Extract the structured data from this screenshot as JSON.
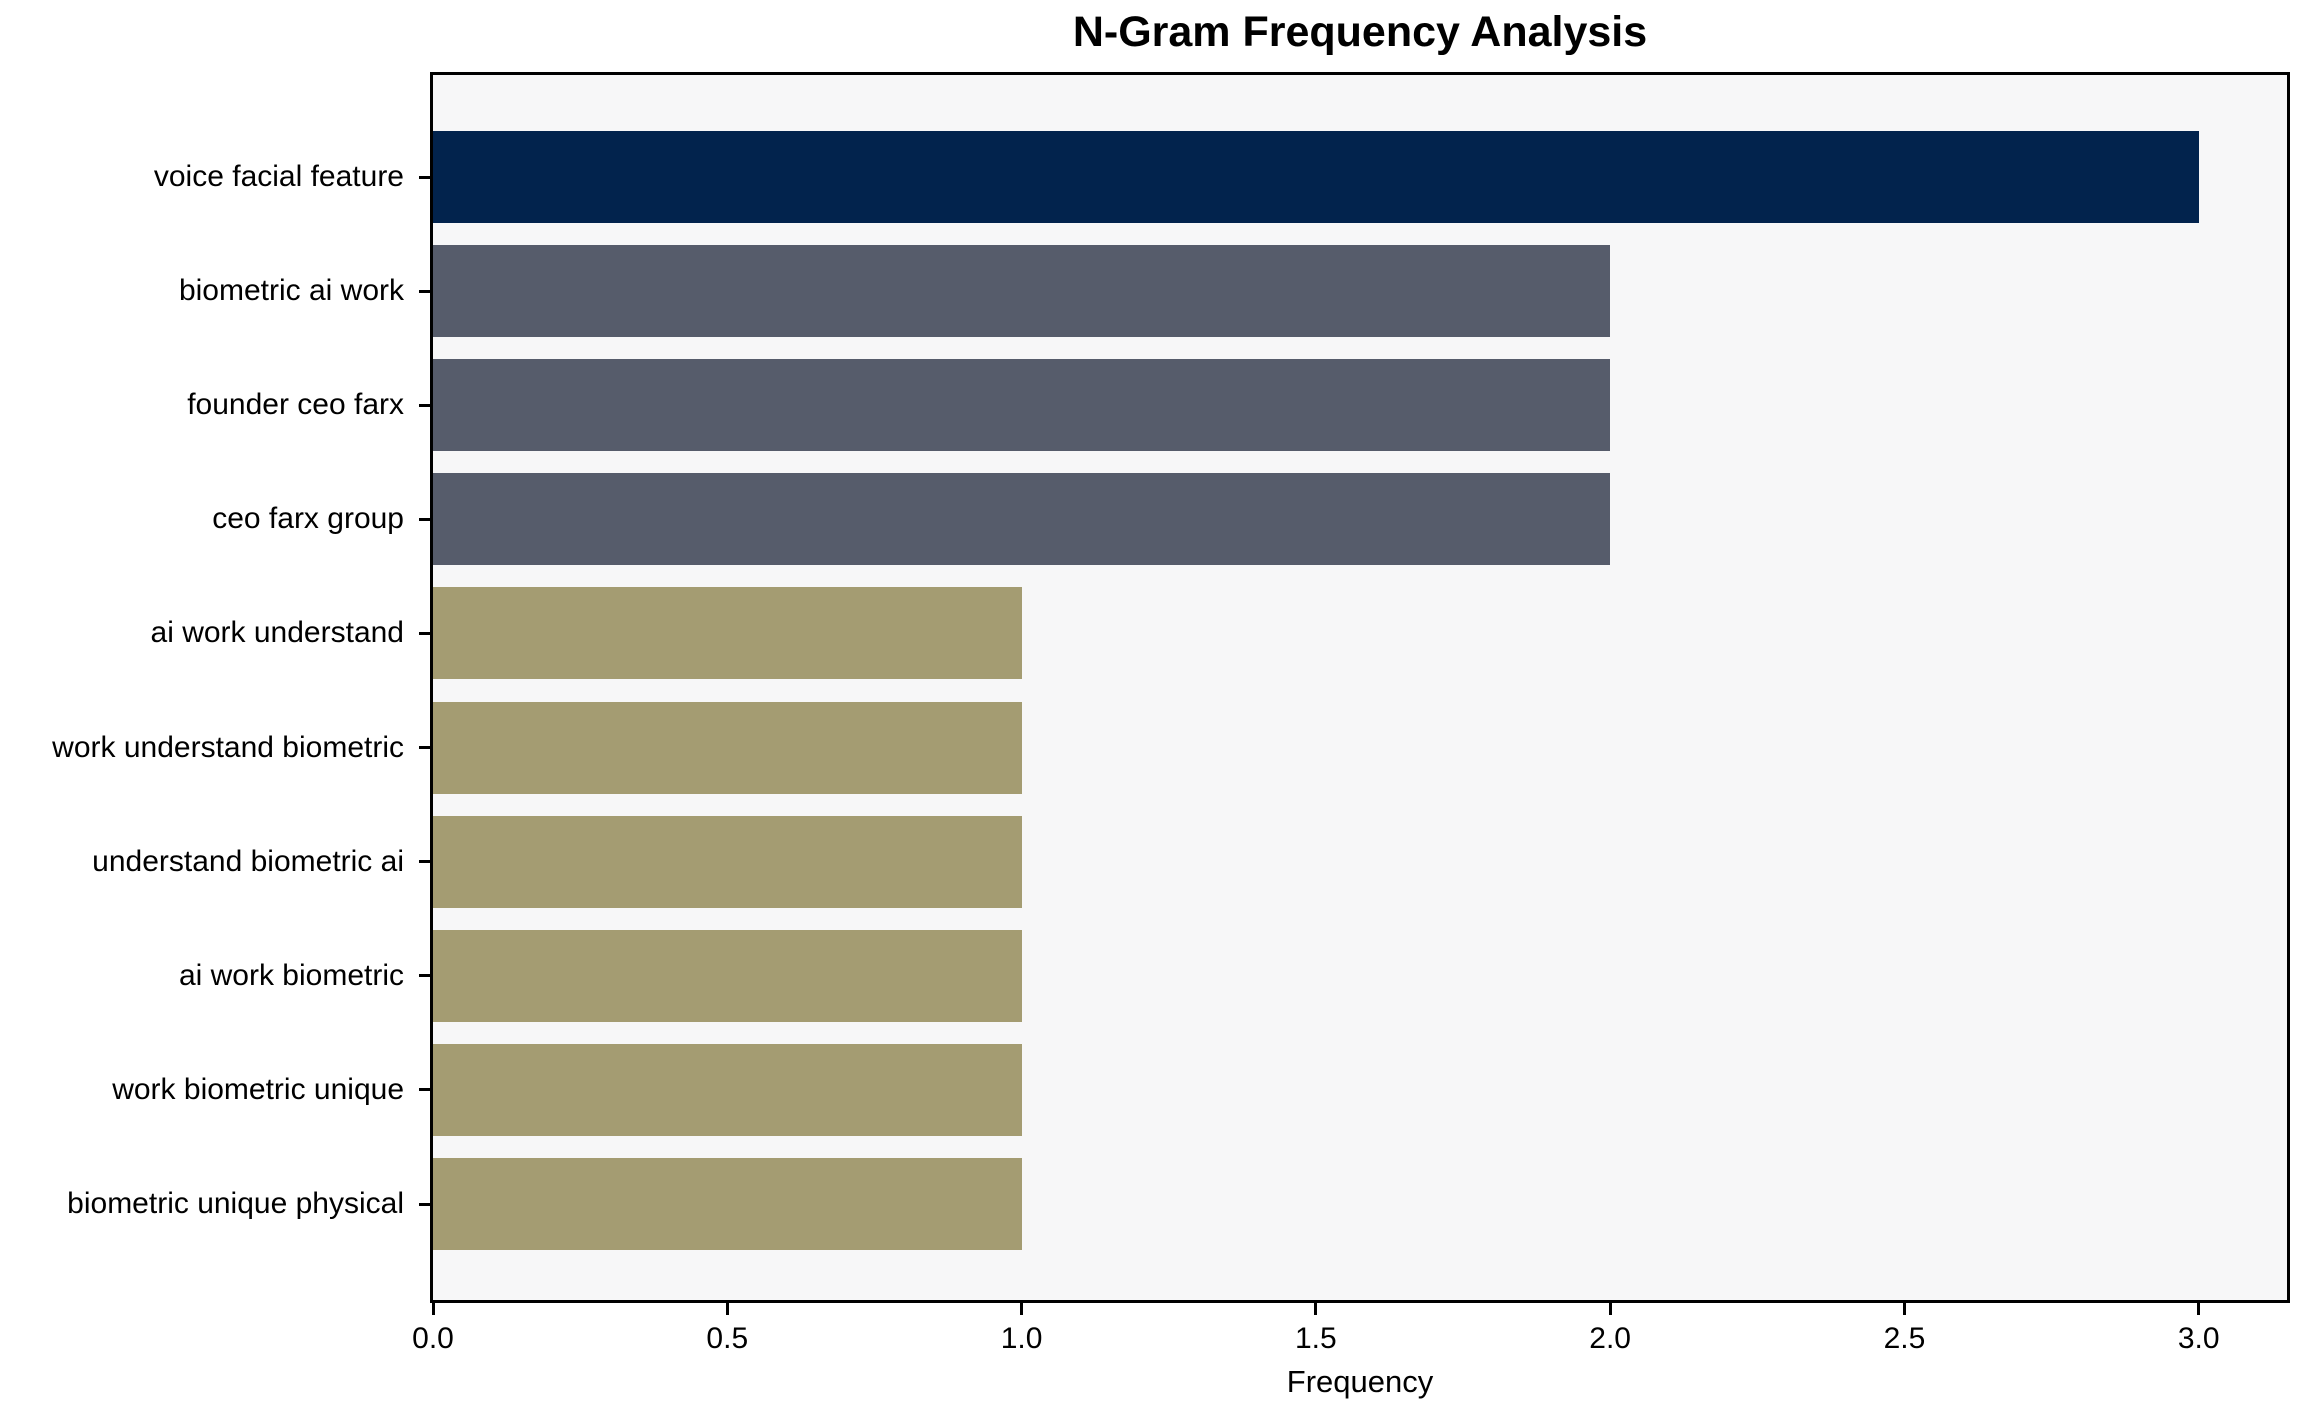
{
  "chart_data": {
    "type": "bar",
    "orientation": "horizontal",
    "title": "N-Gram Frequency Analysis",
    "xlabel": "Frequency",
    "ylabel": "",
    "categories": [
      "voice facial feature",
      "biometric ai work",
      "founder ceo farx",
      "ceo farx group",
      "ai work understand",
      "work understand biometric",
      "understand biometric ai",
      "ai work biometric",
      "work biometric unique",
      "biometric unique physical"
    ],
    "values": [
      3,
      2,
      2,
      2,
      1,
      1,
      1,
      1,
      1,
      1
    ],
    "bar_colors": [
      "#02234d",
      "#565c6b",
      "#565c6b",
      "#565c6b",
      "#a49c72",
      "#a49c72",
      "#a49c72",
      "#a49c72",
      "#a49c72",
      "#a49c72"
    ],
    "xlim": [
      0,
      3.15
    ],
    "x_ticks": [
      {
        "value": 0.0,
        "label": "0.0"
      },
      {
        "value": 0.5,
        "label": "0.5"
      },
      {
        "value": 1.0,
        "label": "1.0"
      },
      {
        "value": 1.5,
        "label": "1.5"
      },
      {
        "value": 2.0,
        "label": "2.0"
      },
      {
        "value": 2.5,
        "label": "2.5"
      },
      {
        "value": 3.0,
        "label": "3.0"
      }
    ],
    "grid": false,
    "legend": null,
    "plot_background": "#f7f7f8",
    "figure_background": "#ffffff",
    "axis_color": "#000000"
  }
}
